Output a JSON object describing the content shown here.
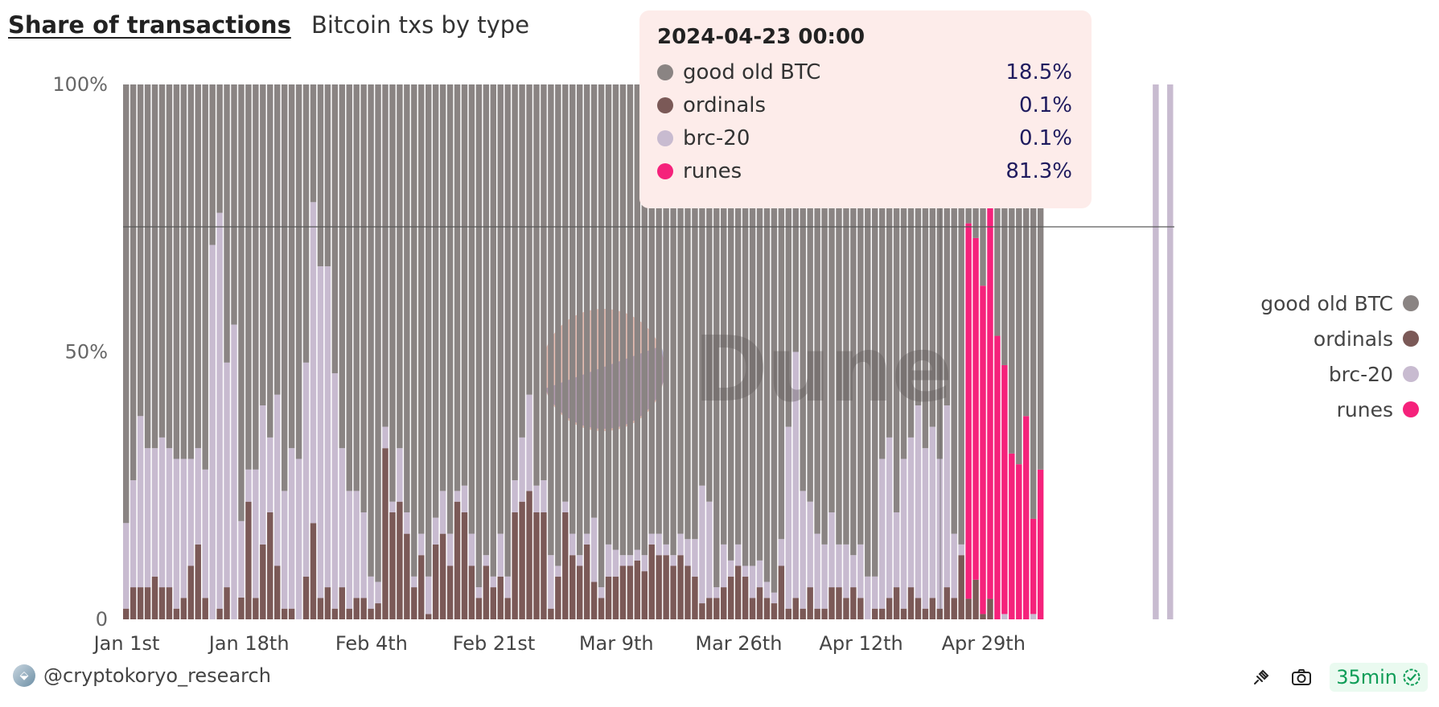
{
  "header": {
    "title": "Share of transactions",
    "subtitle": "Bitcoin txs by type"
  },
  "colors": {
    "btc": "#8a8483",
    "ordinals": "#7b5957",
    "brc20": "#c8bbd0",
    "runes": "#f5227b"
  },
  "chart_data": {
    "type": "bar",
    "stacked": "percent",
    "x_start": "2024-01-01",
    "x_end": "2024-04-30",
    "xticks": [
      "Jan 1st",
      "Jan 18th",
      "Feb 4th",
      "Feb 21st",
      "Mar 9th",
      "Mar 26th",
      "Apr 12th",
      "Apr 29th"
    ],
    "yticks": [
      "0",
      "50%",
      "100%"
    ],
    "ylim": [
      0,
      100
    ],
    "series": [
      {
        "name": "ordinals",
        "color_key": "ordinals",
        "values": [
          2,
          6,
          6,
          6,
          8,
          6,
          6,
          2,
          4,
          10,
          14,
          4,
          0,
          2,
          6,
          0,
          4,
          22,
          4,
          14,
          20,
          10,
          2,
          2,
          0,
          8,
          18,
          4,
          6,
          2,
          6,
          2,
          4,
          4,
          2,
          3,
          32,
          20,
          22,
          16,
          6,
          12,
          1,
          14,
          16,
          10,
          22,
          20,
          10,
          4,
          10,
          6,
          8,
          4,
          20,
          22,
          24,
          20,
          20,
          2,
          8,
          20,
          12,
          10,
          14,
          7,
          4,
          8,
          8,
          10,
          10,
          11,
          9,
          14,
          12,
          12,
          10,
          12,
          10,
          8,
          3,
          4,
          4,
          6,
          8,
          10,
          8,
          4,
          6,
          4,
          3,
          10,
          2,
          4,
          2,
          6,
          2,
          2,
          6,
          6,
          4,
          6,
          4,
          0,
          2,
          2,
          4,
          6,
          2,
          6,
          4,
          2,
          4,
          2,
          6,
          4,
          12,
          4,
          8,
          1,
          4,
          0,
          0,
          0,
          0,
          0,
          0,
          0,
          0,
          0,
          0,
          0,
          0,
          0,
          0,
          0,
          0,
          0,
          0,
          0,
          0,
          0,
          0,
          0,
          0,
          0
        ]
      },
      {
        "name": "brc-20",
        "color_key": "brc20",
        "values": [
          16,
          20,
          32,
          26,
          24,
          28,
          26,
          28,
          26,
          20,
          18,
          24,
          70,
          74,
          42,
          54,
          14,
          6,
          24,
          26,
          14,
          32,
          22,
          30,
          30,
          40,
          60,
          62,
          60,
          44,
          26,
          22,
          20,
          16,
          6,
          4,
          4,
          2,
          10,
          4,
          2,
          4,
          7,
          5,
          8,
          6,
          2,
          5,
          6,
          2,
          2,
          2,
          8,
          4,
          6,
          12,
          18,
          5,
          6,
          10,
          2,
          2,
          4,
          2,
          2,
          12,
          2,
          6,
          5,
          2,
          2,
          2,
          3,
          2,
          4,
          2,
          2,
          4,
          5,
          7,
          22,
          18,
          2,
          8,
          3,
          4,
          2,
          6,
          5,
          3,
          2,
          5,
          34,
          46,
          22,
          16,
          14,
          12,
          14,
          8,
          10,
          6,
          10,
          8,
          6,
          28,
          30,
          14,
          28,
          28,
          36,
          30,
          32,
          28,
          34,
          12,
          2,
          0,
          0,
          0,
          0,
          0,
          1,
          0,
          0,
          0,
          1,
          0,
          0,
          0,
          0,
          0,
          0,
          0,
          0,
          0,
          0,
          0,
          0,
          0,
          0,
          0,
          0,
          1,
          0,
          2
        ]
      },
      {
        "name": "runes",
        "color_key": "runes",
        "values": [
          0,
          0,
          0,
          0,
          0,
          0,
          0,
          0,
          0,
          0,
          0,
          0,
          0,
          0,
          0,
          0,
          0,
          0,
          0,
          0,
          0,
          0,
          0,
          0,
          0,
          0,
          0,
          0,
          0,
          0,
          0,
          0,
          0,
          0,
          0,
          0,
          0,
          0,
          0,
          0,
          0,
          0,
          0,
          0,
          0,
          0,
          0,
          0,
          0,
          0,
          0,
          0,
          0,
          0,
          0,
          0,
          0,
          0,
          0,
          0,
          0,
          0,
          0,
          0,
          0,
          0,
          0,
          0,
          0,
          0,
          0,
          0,
          0,
          0,
          0,
          0,
          0,
          0,
          0,
          0,
          0,
          0,
          0,
          0,
          0,
          0,
          0,
          0,
          0,
          0,
          0,
          0,
          0,
          0,
          0,
          0,
          0,
          0,
          0,
          0,
          0,
          0,
          0,
          0,
          0,
          0,
          0,
          0,
          0,
          0,
          0,
          0,
          0,
          0,
          0,
          0,
          0,
          73,
          69,
          62,
          81,
          53,
          47,
          31,
          29,
          38,
          18,
          28,
          0,
          0,
          0,
          0,
          0,
          0,
          0,
          0,
          0,
          0,
          0,
          0,
          0,
          0,
          0,
          0,
          0,
          0
        ]
      },
      {
        "name": "good old BTC",
        "color_key": "btc",
        "values": [
          82,
          74,
          62,
          68,
          68,
          66,
          68,
          70,
          70,
          70,
          68,
          72,
          30,
          24,
          52,
          44,
          80,
          72,
          72,
          60,
          66,
          58,
          76,
          68,
          70,
          52,
          22,
          34,
          34,
          54,
          68,
          76,
          76,
          80,
          92,
          93,
          64,
          78,
          68,
          80,
          92,
          84,
          92,
          81,
          76,
          84,
          76,
          75,
          84,
          94,
          88,
          92,
          84,
          92,
          74,
          66,
          58,
          75,
          74,
          88,
          90,
          78,
          84,
          88,
          84,
          81,
          94,
          86,
          87,
          88,
          88,
          87,
          88,
          84,
          84,
          86,
          88,
          84,
          85,
          85,
          75,
          78,
          94,
          86,
          89,
          86,
          90,
          90,
          89,
          93,
          95,
          85,
          64,
          50,
          76,
          78,
          84,
          86,
          80,
          86,
          86,
          88,
          86,
          92,
          92,
          70,
          66,
          80,
          70,
          66,
          60,
          68,
          64,
          70,
          60,
          84,
          86,
          27,
          31,
          38,
          19,
          47,
          53,
          69,
          71,
          62,
          82,
          72,
          0,
          0,
          0,
          0,
          0,
          0,
          0,
          0,
          0,
          0,
          0,
          0,
          0,
          0,
          0,
          0,
          0,
          0
        ]
      }
    ],
    "legend": {
      "position": "right",
      "entries": [
        {
          "name": "good old BTC",
          "color_key": "btc"
        },
        {
          "name": "ordinals",
          "color_key": "ordinals"
        },
        {
          "name": "brc-20",
          "color_key": "brc20"
        },
        {
          "name": "runes",
          "color_key": "runes"
        }
      ]
    },
    "hover_x": "2024-04-23",
    "grid": false
  },
  "tooltip": {
    "title": "2024-04-23 00:00",
    "rows": [
      {
        "label": "good old BTC",
        "value": "18.5%",
        "color_key": "btc"
      },
      {
        "label": "ordinals",
        "value": "0.1%",
        "color_key": "ordinals"
      },
      {
        "label": "brc-20",
        "value": "0.1%",
        "color_key": "brc20"
      },
      {
        "label": "runes",
        "value": "81.3%",
        "color_key": "runes"
      }
    ]
  },
  "watermark": {
    "text": "Dune"
  },
  "footer": {
    "author": "@cryptokoryo_research",
    "refresh": "35min"
  }
}
